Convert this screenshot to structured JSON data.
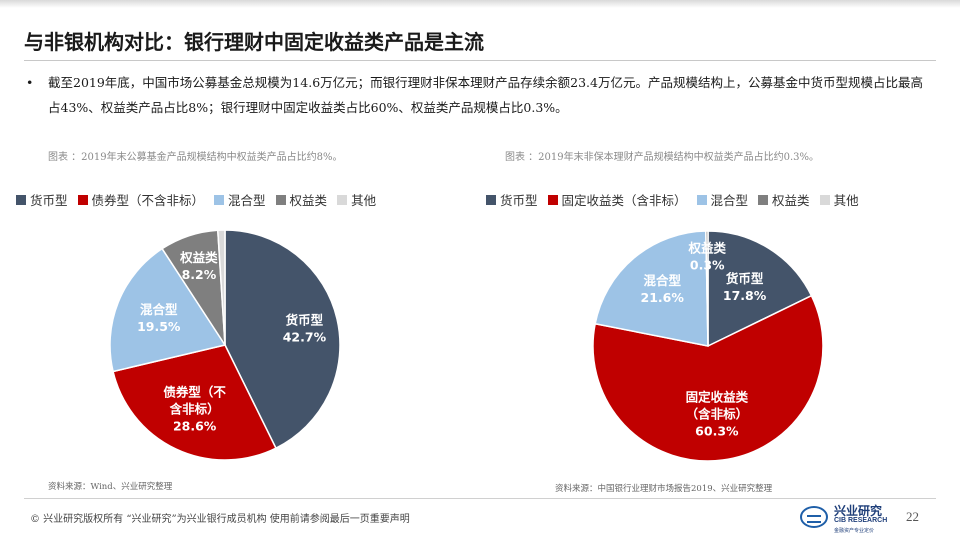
{
  "title": "与非银机构对比：银行理财中固定收益类产品是主流",
  "bullet": {
    "marker": "•",
    "text": "截至2019年底，中国市场公募基金总规模为14.6万亿元；而银行理财非保本理财产品存续余额23.4万亿元。产品规模结构上，公募基金中货币型规模占比最高占43%、权益类产品占比8%；银行理财中固定收益类占比60%、权益类产品规模占比0.3%。"
  },
  "chart_data": [
    {
      "type": "pie",
      "caption": "图表 ：2019年末公募基金产品规模结构中权益类产品占比约8%。",
      "categories": [
        "货币型",
        "债券型（不含非标）",
        "混合型",
        "权益类",
        "其他"
      ],
      "values": [
        42.7,
        28.6,
        19.5,
        8.2,
        1.0
      ],
      "colors": [
        "#44546a",
        "#c00000",
        "#9dc3e6",
        "#7f7f7f",
        "#d9d9d9"
      ],
      "slice_labels": [
        {
          "lines": [
            "货币型",
            "42.7%"
          ],
          "color": "#ffffff"
        },
        {
          "lines": [
            "债券型（不",
            "含非标）",
            "28.6%"
          ],
          "color": "#ffffff"
        },
        {
          "lines": [
            "混合型",
            "19.5%"
          ],
          "color": "#ffffff"
        },
        {
          "lines": [
            "权益类",
            "8.2%"
          ],
          "color": "#ffffff"
        },
        null
      ],
      "legend_position": "top",
      "source": "资料来源：Wind、兴业研究整理"
    },
    {
      "type": "pie",
      "caption": "图表 ：2019年末非保本理财产品规模结构中权益类产品占比约0.3%。",
      "categories": [
        "货币型",
        "固定收益类（含非标）",
        "混合型",
        "权益类",
        "其他"
      ],
      "values": [
        17.8,
        60.3,
        21.6,
        0.3,
        0.0
      ],
      "colors": [
        "#44546a",
        "#c00000",
        "#9dc3e6",
        "#7f7f7f",
        "#d9d9d9"
      ],
      "slice_labels": [
        {
          "lines": [
            "货币型",
            "17.8%"
          ],
          "color": "#ffffff"
        },
        {
          "lines": [
            "固定收益类",
            "（含非标）",
            "60.3%"
          ],
          "color": "#ffffff"
        },
        {
          "lines": [
            "混合型",
            "21.6%"
          ],
          "color": "#ffffff"
        },
        {
          "lines": [
            "权益类",
            "0.3%"
          ],
          "color": "#ffffff"
        },
        null
      ],
      "legend_position": "top",
      "source": "资料来源：中国银行业理财市场报告2019、兴业研究整理"
    }
  ],
  "footer": {
    "text": "© 兴业研究版权所有 “兴业研究”为兴业银行成员机构 使用前请参阅最后一页重要声明",
    "page_number": "22"
  },
  "logo": {
    "cn": "兴业研究",
    "en": "CIB RESEARCH",
    "sub": "金融资产专业定价"
  }
}
